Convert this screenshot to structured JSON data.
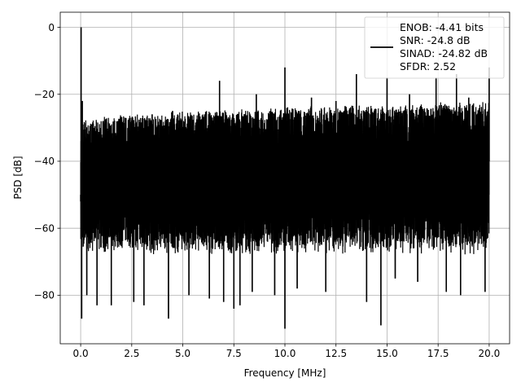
{
  "chart_data": {
    "type": "line",
    "title": "",
    "xlabel": "Frequency [MHz]",
    "ylabel": "PSD [dB]",
    "xlim": [
      -1.0,
      21.0
    ],
    "ylim": [
      -94.5,
      4.5
    ],
    "xticks": [
      0.0,
      2.5,
      5.0,
      7.5,
      10.0,
      12.5,
      15.0,
      17.5,
      20.0
    ],
    "xtick_labels": [
      "0.0",
      "2.5",
      "5.0",
      "7.5",
      "10.0",
      "12.5",
      "15.0",
      "17.5",
      "20.0"
    ],
    "yticks": [
      0,
      -20,
      -40,
      -60,
      -80
    ],
    "ytick_labels": [
      "0",
      "−20",
      "−40",
      "−60",
      "−80"
    ],
    "grid": true,
    "legend_position": "top-right",
    "series": [
      {
        "name": "ENOB: -4.41 bits\nSNR: -24.8 dB\nSINAD: -24.82 dB\nSFDR: 2.52",
        "color": "#000000",
        "description": "Dense noise-like power spectral density; upper envelope rises from about -28 dB near 0 MHz to about -22 dB, lower envelope about -62 to -70 dB, with a 0 dB peak at 0 MHz.",
        "points": [
          [
            0.0,
            -52
          ],
          [
            0.02,
            0
          ],
          [
            0.05,
            -87
          ],
          [
            0.08,
            -22
          ],
          [
            0.3,
            -80
          ],
          [
            0.55,
            -29
          ],
          [
            0.8,
            -83
          ],
          [
            1.1,
            -28
          ],
          [
            1.5,
            -83
          ],
          [
            2.0,
            -27
          ],
          [
            2.6,
            -82
          ],
          [
            3.1,
            -83
          ],
          [
            3.5,
            -26
          ],
          [
            4.3,
            -87
          ],
          [
            4.5,
            -25
          ],
          [
            5.3,
            -80
          ],
          [
            6.3,
            -81
          ],
          [
            6.8,
            -16
          ],
          [
            7.0,
            -82
          ],
          [
            7.5,
            -84
          ],
          [
            7.8,
            -83
          ],
          [
            8.4,
            -79
          ],
          [
            8.6,
            -20
          ],
          [
            9.5,
            -80
          ],
          [
            10.0,
            -90
          ],
          [
            10.0,
            -12
          ],
          [
            10.6,
            -78
          ],
          [
            11.3,
            -21
          ],
          [
            12.0,
            -79
          ],
          [
            12.5,
            -22
          ],
          [
            13.5,
            -14
          ],
          [
            14.0,
            -82
          ],
          [
            14.7,
            -89
          ],
          [
            15.0,
            -15
          ],
          [
            15.4,
            -75
          ],
          [
            16.1,
            -20
          ],
          [
            16.5,
            -76
          ],
          [
            17.4,
            -15
          ],
          [
            17.9,
            -79
          ],
          [
            18.4,
            -14
          ],
          [
            18.6,
            -80
          ],
          [
            19.0,
            -21
          ],
          [
            19.8,
            -79
          ],
          [
            20.0,
            -12
          ],
          [
            20.0,
            -50
          ]
        ]
      }
    ],
    "legend": {
      "lines": [
        "ENOB: -4.41 bits",
        "SNR: -24.8 dB",
        "SINAD: -24.82 dB",
        "SFDR: 2.52"
      ]
    }
  }
}
